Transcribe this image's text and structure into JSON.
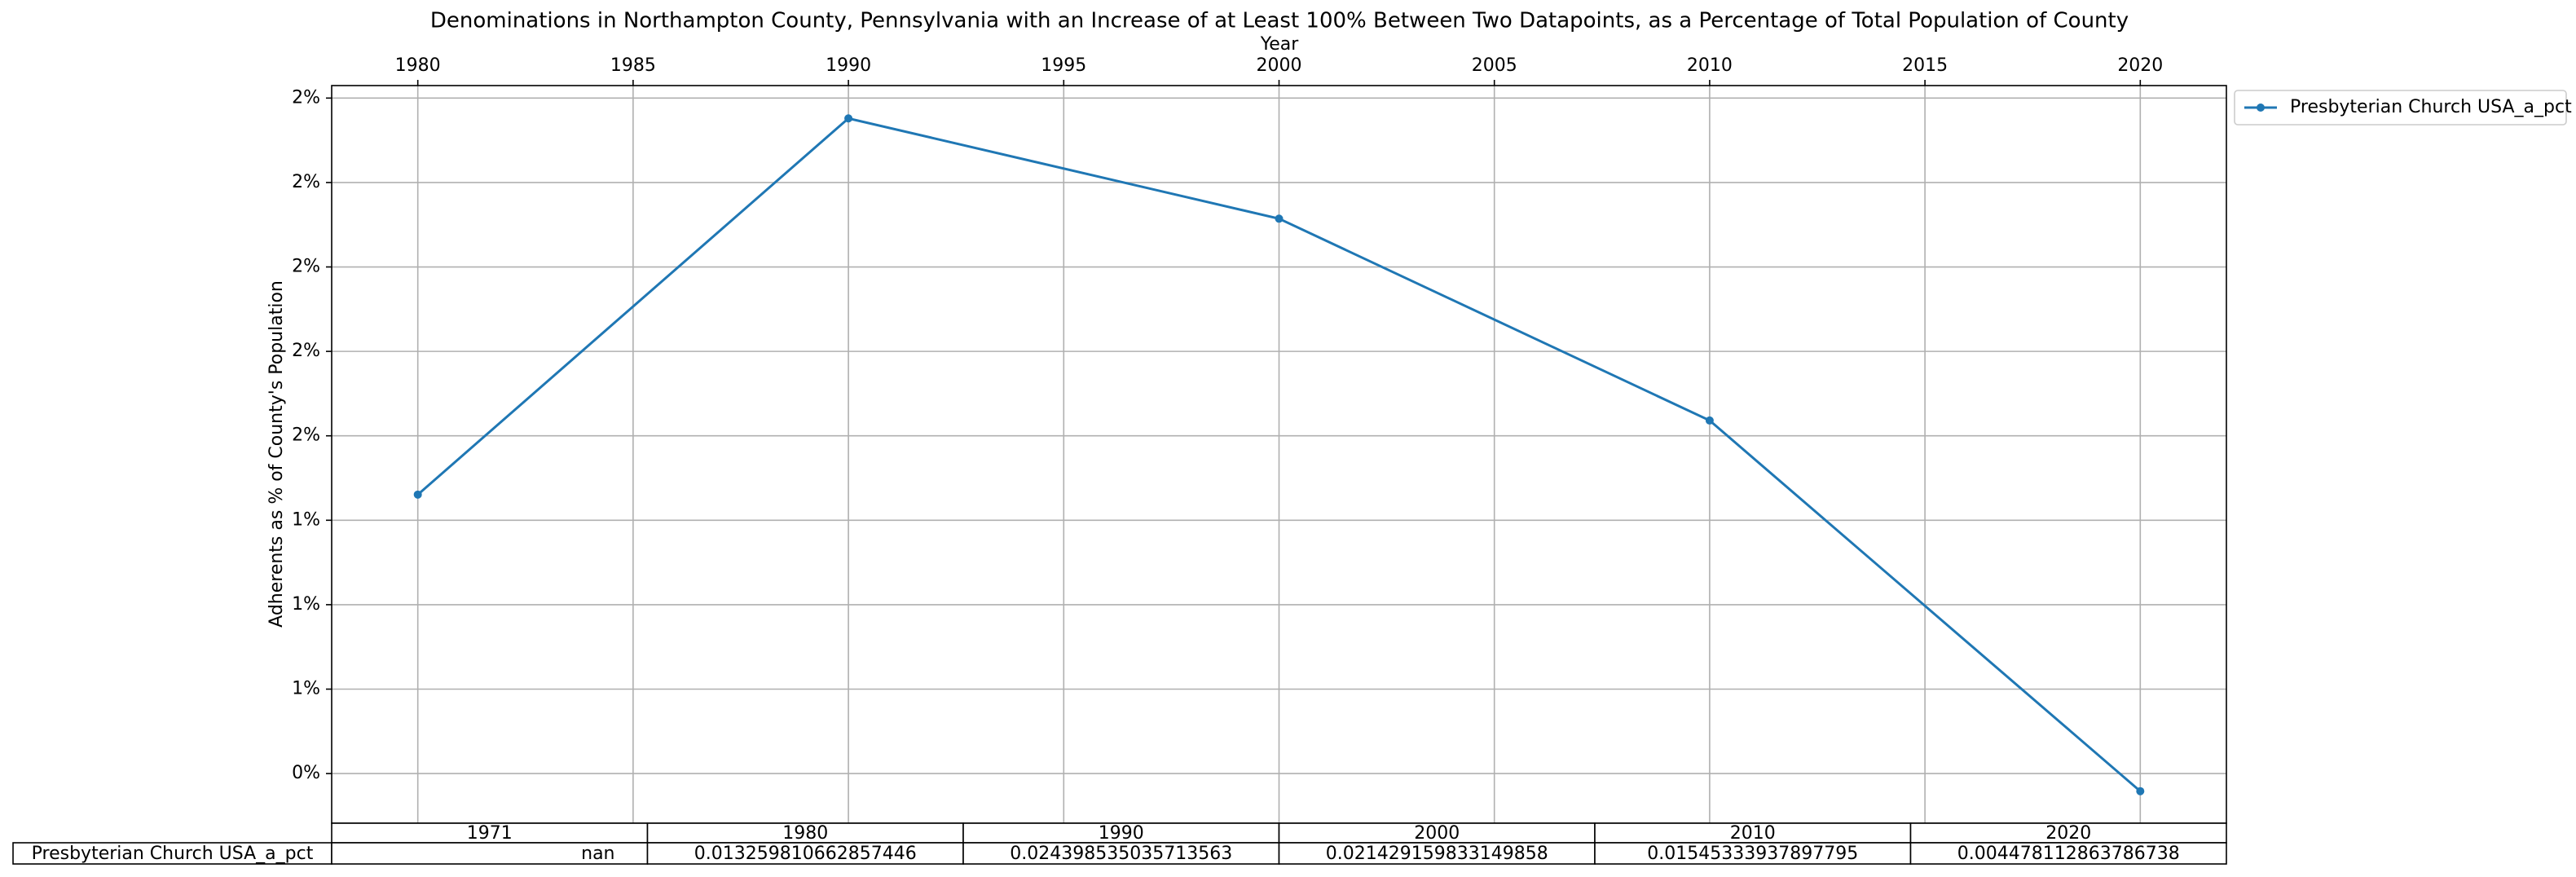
{
  "chart_data": {
    "type": "line",
    "title": "Denominations in Northampton County, Pennsylvania with an Increase of at Least 100% Between Two Datapoints, as a Percentage of Total Population of County",
    "x_label": "Year",
    "y_label": "Adherents as % of County's Population",
    "x": [
      1980,
      1990,
      2000,
      2010,
      2020
    ],
    "series": [
      {
        "name": "Presbyterian Church USA_a_pct",
        "color": "#1f77b4",
        "values": [
          0.013259810662857446,
          0.024398535035713563,
          0.021429159833149858,
          0.01545333937897795,
          0.004478112863786738
        ]
      }
    ],
    "xlim": [
      1978,
      2022
    ],
    "xticks": [
      1980,
      1985,
      1990,
      1995,
      2000,
      2005,
      2010,
      2015,
      2020
    ],
    "ylim": [
      0.00353,
      0.02537
    ],
    "yticks": [
      {
        "value": 0.005,
        "label": "0%"
      },
      {
        "value": 0.0075,
        "label": "1%"
      },
      {
        "value": 0.01,
        "label": "1%"
      },
      {
        "value": 0.0125,
        "label": "1%"
      },
      {
        "value": 0.015,
        "label": "2%"
      },
      {
        "value": 0.0175,
        "label": "2%"
      },
      {
        "value": 0.02,
        "label": "2%"
      },
      {
        "value": 0.0225,
        "label": "2%"
      },
      {
        "value": 0.025,
        "label": "2%"
      }
    ],
    "grid": true,
    "legend": "outside upper right",
    "table": {
      "columns": [
        "1971",
        "1980",
        "1990",
        "2000",
        "2010",
        "2020"
      ],
      "rows": [
        {
          "label": "Presbyterian Church USA_a_pct",
          "cells": [
            "nan",
            "0.013259810662857446",
            "0.024398535035713563",
            "0.021429159833149858",
            "0.01545333937897795",
            "0.004478112863786738"
          ]
        }
      ]
    }
  }
}
